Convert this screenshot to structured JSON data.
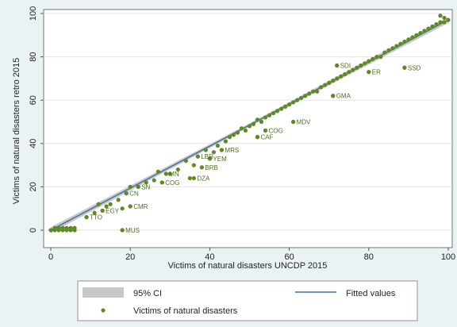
{
  "chart_data": {
    "type": "scatter",
    "title": "",
    "xlabel": "Victims of natural disasters UNCDP 2015",
    "ylabel": "Victims of natural disasters retro 2015",
    "xlim": [
      0,
      100
    ],
    "ylim": [
      0,
      100
    ],
    "xticks": [
      0,
      20,
      40,
      60,
      80,
      100
    ],
    "yticks": [
      0,
      20,
      40,
      60,
      80,
      100
    ],
    "grid": "horizontal",
    "legend_position": "bottom",
    "legend": {
      "ci_label": "95% CI",
      "fitted_label": "Fitted values",
      "scatter_label": "Victims of natural disasters"
    },
    "colors": {
      "points": "#5f8a23",
      "fit": "#3f6f9f",
      "ci": "#c8c8c8",
      "plot_bg": "#ffffff",
      "outer_bg": "#eaf2f3"
    },
    "fit": {
      "x": [
        0,
        100
      ],
      "y": [
        0,
        97
      ]
    },
    "labeled_points": [
      {
        "label": "MUS",
        "x": 18,
        "y": 0
      },
      {
        "label": "TTO",
        "x": 9,
        "y": 6
      },
      {
        "label": "EGY",
        "x": 13,
        "y": 9
      },
      {
        "label": "CMR",
        "x": 20,
        "y": 11
      },
      {
        "label": "CN",
        "x": 19,
        "y": 17
      },
      {
        "label": "SN",
        "x": 22,
        "y": 20
      },
      {
        "label": "MN",
        "x": 29,
        "y": 26
      },
      {
        "label": "COG",
        "x": 28,
        "y": 22
      },
      {
        "label": "DZA",
        "x": 36,
        "y": 24
      },
      {
        "label": "BRB",
        "x": 38,
        "y": 29
      },
      {
        "label": "YEM",
        "x": 40,
        "y": 33
      },
      {
        "label": "LBR",
        "x": 37,
        "y": 34
      },
      {
        "label": "MRS",
        "x": 43,
        "y": 37
      },
      {
        "label": "CAF",
        "x": 52,
        "y": 43
      },
      {
        "label": "COG",
        "x": 54,
        "y": 46
      },
      {
        "label": "MDV",
        "x": 61,
        "y": 50
      },
      {
        "label": "GMA",
        "x": 71,
        "y": 62
      },
      {
        "label": "SDI",
        "x": 72,
        "y": 76
      },
      {
        "label": "ER",
        "x": 80,
        "y": 73
      },
      {
        "label": "SSD",
        "x": 89,
        "y": 75
      }
    ],
    "points": [
      [
        0,
        0
      ],
      [
        1,
        0
      ],
      [
        2,
        0
      ],
      [
        3,
        0
      ],
      [
        4,
        0
      ],
      [
        5,
        0
      ],
      [
        6,
        0
      ],
      [
        1,
        1
      ],
      [
        2,
        1
      ],
      [
        3,
        1
      ],
      [
        4,
        1
      ],
      [
        5,
        1
      ],
      [
        6,
        1
      ],
      [
        18,
        0
      ],
      [
        9,
        6
      ],
      [
        11,
        8
      ],
      [
        12,
        12
      ],
      [
        13,
        9
      ],
      [
        14,
        11
      ],
      [
        15,
        12
      ],
      [
        17,
        14
      ],
      [
        18,
        10
      ],
      [
        19,
        17
      ],
      [
        20,
        11
      ],
      [
        20,
        20
      ],
      [
        22,
        20
      ],
      [
        24,
        22
      ],
      [
        26,
        23
      ],
      [
        27,
        27
      ],
      [
        28,
        22
      ],
      [
        30,
        26
      ],
      [
        32,
        28
      ],
      [
        34,
        32
      ],
      [
        35,
        24
      ],
      [
        36,
        30
      ],
      [
        37,
        34
      ],
      [
        38,
        29
      ],
      [
        39,
        37
      ],
      [
        40,
        33
      ],
      [
        41,
        36
      ],
      [
        42,
        39
      ],
      [
        43,
        37
      ],
      [
        44,
        41
      ],
      [
        45,
        43
      ],
      [
        46,
        44
      ],
      [
        47,
        45
      ],
      [
        48,
        47
      ],
      [
        49,
        46
      ],
      [
        50,
        48
      ],
      [
        51,
        49
      ],
      [
        52,
        43
      ],
      [
        52,
        51
      ],
      [
        53,
        50
      ],
      [
        54,
        46
      ],
      [
        54,
        52
      ],
      [
        55,
        53
      ],
      [
        56,
        54
      ],
      [
        57,
        55
      ],
      [
        58,
        56
      ],
      [
        59,
        57
      ],
      [
        60,
        58
      ],
      [
        61,
        50
      ],
      [
        61,
        59
      ],
      [
        62,
        60
      ],
      [
        63,
        61
      ],
      [
        64,
        62
      ],
      [
        65,
        63
      ],
      [
        66,
        64
      ],
      [
        67,
        64
      ],
      [
        68,
        66
      ],
      [
        69,
        67
      ],
      [
        70,
        68
      ],
      [
        71,
        62
      ],
      [
        71,
        69
      ],
      [
        72,
        76
      ],
      [
        72,
        70
      ],
      [
        73,
        71
      ],
      [
        74,
        72
      ],
      [
        75,
        73
      ],
      [
        76,
        74
      ],
      [
        77,
        75
      ],
      [
        78,
        76
      ],
      [
        79,
        77
      ],
      [
        80,
        73
      ],
      [
        80,
        78
      ],
      [
        81,
        79
      ],
      [
        82,
        80
      ],
      [
        83,
        80
      ],
      [
        84,
        82
      ],
      [
        85,
        83
      ],
      [
        86,
        84
      ],
      [
        87,
        85
      ],
      [
        88,
        86
      ],
      [
        89,
        75
      ],
      [
        89,
        87
      ],
      [
        90,
        88
      ],
      [
        91,
        89
      ],
      [
        92,
        90
      ],
      [
        93,
        91
      ],
      [
        94,
        92
      ],
      [
        95,
        93
      ],
      [
        96,
        94
      ],
      [
        97,
        95
      ],
      [
        98,
        96
      ],
      [
        99,
        96
      ],
      [
        100,
        97
      ],
      [
        99,
        98
      ],
      [
        98,
        99
      ]
    ]
  }
}
